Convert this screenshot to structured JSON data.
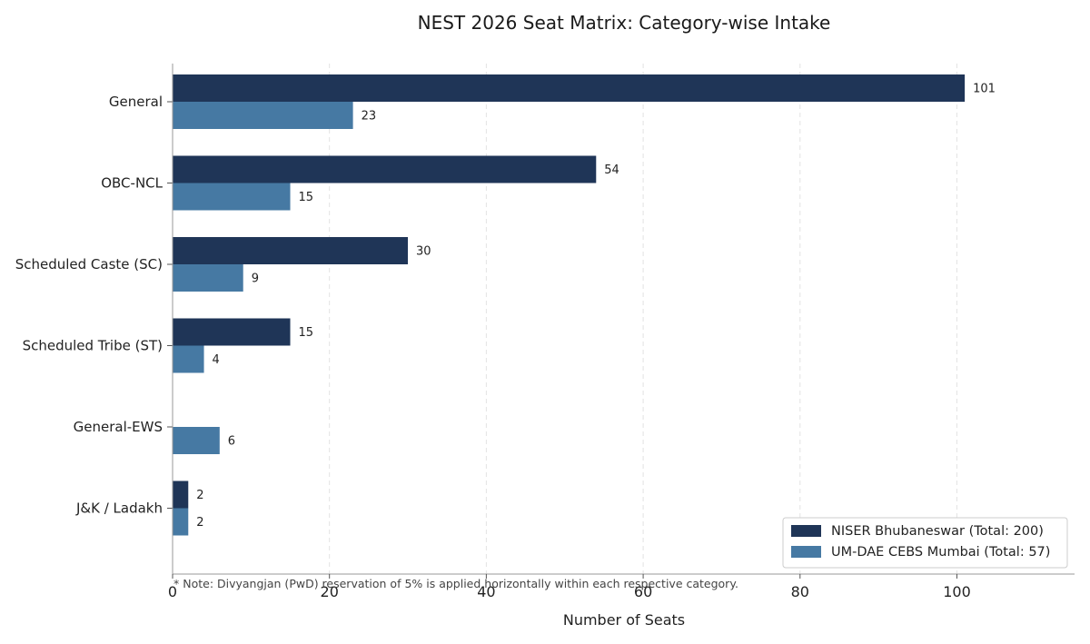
{
  "chart_data": {
    "type": "bar",
    "orientation": "horizontal",
    "title": "NEST 2026 Seat Matrix: Category-wise Intake",
    "xlabel": "Number of Seats",
    "ylabel": "",
    "categories": [
      "General",
      "OBC-NCL",
      "Scheduled Caste (SC)",
      "Scheduled Tribe (ST)",
      "General-EWS",
      "J&K / Ladakh"
    ],
    "series": [
      {
        "name": "NISER Bhubaneswar (Total: 200)",
        "color": "#1f3557",
        "values": [
          101,
          54,
          30,
          15,
          0,
          2
        ]
      },
      {
        "name": "UM-DAE CEBS Mumbai (Total: 57)",
        "color": "#4679a3",
        "values": [
          23,
          15,
          9,
          4,
          6,
          2
        ]
      }
    ],
    "xlim": [
      0,
      115
    ],
    "xticks": [
      0,
      20,
      40,
      60,
      80,
      100
    ],
    "grid": "vertical dashed",
    "legend_position": "bottom-right",
    "annotation": "* Note: Divyangjan (PwD) reservation of 5% is applied horizontally within each respective category."
  }
}
